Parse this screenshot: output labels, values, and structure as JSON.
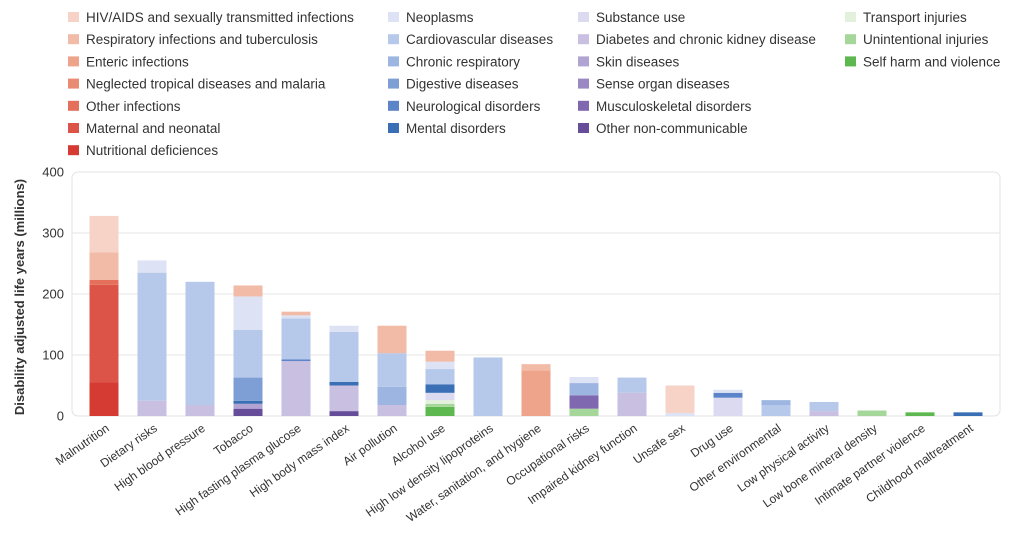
{
  "chart_data": {
    "type": "bar",
    "stacked": true,
    "ylabel": "Disability adjusted life years (millions)",
    "ylim": [
      0,
      400
    ],
    "yticks": [
      0,
      100,
      200,
      300,
      400
    ],
    "grid": true,
    "legend_position": "top",
    "legend": [
      {
        "name": "HIV/AIDS and sexually transmitted infections",
        "color": "#f6d3c6"
      },
      {
        "name": "Respiratory infections and tuberculosis",
        "color": "#f2bba7"
      },
      {
        "name": "Enteric infections",
        "color": "#eea48b"
      },
      {
        "name": "Neglected tropical diseases and malaria",
        "color": "#e98b72"
      },
      {
        "name": "Other infections",
        "color": "#e4705c"
      },
      {
        "name": "Maternal and neonatal",
        "color": "#dc5447"
      },
      {
        "name": "Nutritional deficiences",
        "color": "#d53a33"
      },
      {
        "name": "Neoplasms",
        "color": "#dde2f4"
      },
      {
        "name": "Cardiovascular diseases",
        "color": "#b7c9ea"
      },
      {
        "name": "Chronic respiratory",
        "color": "#9db5e1"
      },
      {
        "name": "Digestive diseases",
        "color": "#7e9fd6"
      },
      {
        "name": "Neurological disorders",
        "color": "#5c84c8"
      },
      {
        "name": "Mental disorders",
        "color": "#3a6fb5"
      },
      {
        "name": "Substance use",
        "color": "#dcdaf0"
      },
      {
        "name": "Diabetes and chronic kidney disease",
        "color": "#c9bfe0"
      },
      {
        "name": "Skin diseases",
        "color": "#b2a4d2"
      },
      {
        "name": "Sense organ diseases",
        "color": "#9a88c3"
      },
      {
        "name": "Musculoskeletal disorders",
        "color": "#8068b0"
      },
      {
        "name": "Other non-communicable",
        "color": "#654d99"
      },
      {
        "name": "Transport injuries",
        "color": "#e3f0dc"
      },
      {
        "name": "Unintentional injuries",
        "color": "#a6d79a"
      },
      {
        "name": "Self harm and violence",
        "color": "#5cb84f"
      }
    ],
    "categories": [
      "Malnutrition",
      "Dietary risks",
      "High blood pressure",
      "Tobacco",
      "High fasting plasma glucose",
      "High body mass index",
      "Air pollution",
      "Alcohol use",
      "High low density lipoproteins",
      "Water, sanitation, and hygiene",
      "Occupational risks",
      "Impaired kidney function",
      "Unsafe sex",
      "Drug use",
      "Other environmental",
      "Low physical activity",
      "Low bone mineral density",
      "Intimate partner violence",
      "Childhood maltreatment"
    ],
    "bars": [
      [
        {
          "color": "#d53a33",
          "value": 55
        },
        {
          "color": "#dc5447",
          "value": 160
        },
        {
          "color": "#e4705c",
          "value": 8
        },
        {
          "color": "#f2bba7",
          "value": 45
        },
        {
          "color": "#f6d3c6",
          "value": 60
        }
      ],
      [
        {
          "color": "#c9bfe0",
          "value": 25
        },
        {
          "color": "#b7c9ea",
          "value": 210
        },
        {
          "color": "#dde2f4",
          "value": 20
        }
      ],
      [
        {
          "color": "#c9bfe0",
          "value": 18
        },
        {
          "color": "#b7c9ea",
          "value": 202
        }
      ],
      [
        {
          "color": "#654d99",
          "value": 12
        },
        {
          "color": "#b2a4d2",
          "value": 8
        },
        {
          "color": "#3a6fb5",
          "value": 5
        },
        {
          "color": "#7e9fd6",
          "value": 38
        },
        {
          "color": "#b7c9ea",
          "value": 78
        },
        {
          "color": "#dde2f4",
          "value": 55
        },
        {
          "color": "#f2bba7",
          "value": 18
        }
      ],
      [
        {
          "color": "#c9bfe0",
          "value": 90
        },
        {
          "color": "#5c84c8",
          "value": 3
        },
        {
          "color": "#b7c9ea",
          "value": 67
        },
        {
          "color": "#dde2f4",
          "value": 5
        },
        {
          "color": "#f2bba7",
          "value": 6
        }
      ],
      [
        {
          "color": "#654d99",
          "value": 8
        },
        {
          "color": "#c9bfe0",
          "value": 42
        },
        {
          "color": "#3a6fb5",
          "value": 6
        },
        {
          "color": "#b7c9ea",
          "value": 82
        },
        {
          "color": "#dde2f4",
          "value": 10
        }
      ],
      [
        {
          "color": "#c9bfe0",
          "value": 18
        },
        {
          "color": "#9db5e1",
          "value": 30
        },
        {
          "color": "#b7c9ea",
          "value": 55
        },
        {
          "color": "#f2bba7",
          "value": 45
        }
      ],
      [
        {
          "color": "#5cb84f",
          "value": 15
        },
        {
          "color": "#a6d79a",
          "value": 5
        },
        {
          "color": "#e3f0dc",
          "value": 6
        },
        {
          "color": "#dcdaf0",
          "value": 12
        },
        {
          "color": "#3a6fb5",
          "value": 14
        },
        {
          "color": "#b7c9ea",
          "value": 25
        },
        {
          "color": "#dde2f4",
          "value": 12
        },
        {
          "color": "#f2bba7",
          "value": 18
        }
      ],
      [
        {
          "color": "#b7c9ea",
          "value": 96
        }
      ],
      [
        {
          "color": "#eea48b",
          "value": 75
        },
        {
          "color": "#f2bba7",
          "value": 10
        }
      ],
      [
        {
          "color": "#a6d79a",
          "value": 12
        },
        {
          "color": "#8068b0",
          "value": 22
        },
        {
          "color": "#9db5e1",
          "value": 20
        },
        {
          "color": "#dde2f4",
          "value": 10
        }
      ],
      [
        {
          "color": "#c9bfe0",
          "value": 38
        },
        {
          "color": "#b7c9ea",
          "value": 25
        }
      ],
      [
        {
          "color": "#dde2f4",
          "value": 5
        },
        {
          "color": "#f6d3c6",
          "value": 45
        }
      ],
      [
        {
          "color": "#dcdaf0",
          "value": 30
        },
        {
          "color": "#5c84c8",
          "value": 8
        },
        {
          "color": "#dde2f4",
          "value": 5
        }
      ],
      [
        {
          "color": "#b7c9ea",
          "value": 18
        },
        {
          "color": "#9db5e1",
          "value": 8
        }
      ],
      [
        {
          "color": "#c9bfe0",
          "value": 8
        },
        {
          "color": "#b7c9ea",
          "value": 15
        }
      ],
      [
        {
          "color": "#a6d79a",
          "value": 9
        }
      ],
      [
        {
          "color": "#5cb84f",
          "value": 6
        }
      ],
      [
        {
          "color": "#3a6fb5",
          "value": 6
        }
      ]
    ]
  }
}
